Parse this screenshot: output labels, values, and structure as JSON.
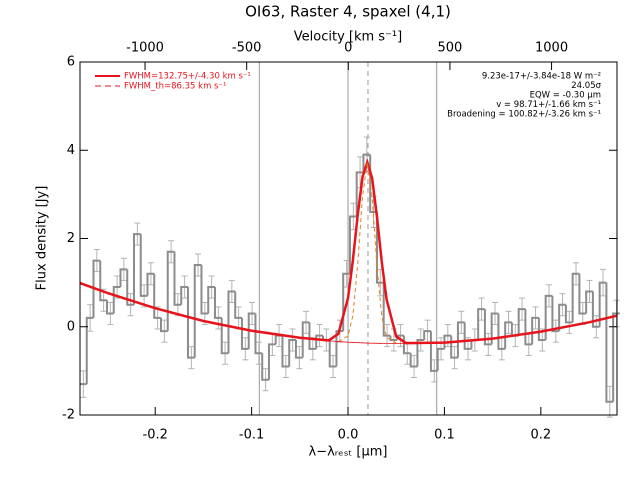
{
  "chart_data": {
    "type": "line",
    "title": "OI63, Raster 4, spaxel (4,1)",
    "xlabel": "λ−λᵣₑₛₜ [μm]",
    "ylabel": "Flux density [Jy]",
    "x2label": "Velocity [km s⁻¹]",
    "xlim": [
      -0.278,
      0.279
    ],
    "ylim": [
      -2,
      6
    ],
    "x2lim": [
      -1320,
      1322
    ],
    "xticks": [
      -0.2,
      -0.1,
      {
        "value": 0,
        "label": "0.0"
      },
      0.1,
      0.2
    ],
    "yticks": [
      -2,
      0,
      2,
      4,
      6
    ],
    "x2ticks": [
      -1000,
      -500,
      0,
      500,
      1000
    ],
    "reference_lines": [
      -0.092,
      0,
      0.092
    ],
    "line_center": 0.0207,
    "annotations": [
      "9.23e-17+/-3.84e-18 W m⁻²",
      "24.05σ",
      "EQW = -0.30 μm",
      "v = 98.71+/-1.66 km s⁻¹",
      "Broadening = 100.82+/-3.26 km s⁻¹"
    ],
    "series": [
      {
        "style": "step",
        "color": "#8c8c8c",
        "error_color": "#b4b4b4",
        "x": [
          -0.2745,
          -0.2675,
          -0.2605,
          -0.2535,
          -0.2465,
          -0.2395,
          -0.2325,
          -0.2255,
          -0.2185,
          -0.2115,
          -0.2045,
          -0.1975,
          -0.1905,
          -0.1835,
          -0.1765,
          -0.1695,
          -0.1625,
          -0.1555,
          -0.1485,
          -0.1415,
          -0.1345,
          -0.1275,
          -0.1205,
          -0.1135,
          -0.1065,
          -0.0995,
          -0.0925,
          -0.0855,
          -0.0785,
          -0.0715,
          -0.0645,
          -0.0575,
          -0.0505,
          -0.0435,
          -0.0365,
          -0.0295,
          -0.0225,
          -0.0155,
          -0.0085,
          -0.0015,
          0.0055,
          0.0125,
          0.0195,
          0.0265,
          0.0335,
          0.0405,
          0.0475,
          0.0545,
          0.0615,
          0.0685,
          0.0755,
          0.0825,
          0.0895,
          0.0965,
          0.1035,
          0.1105,
          0.1175,
          0.1245,
          0.1315,
          0.1385,
          0.1455,
          0.1525,
          0.1595,
          0.1665,
          0.1735,
          0.1805,
          0.1875,
          0.1945,
          0.2015,
          0.2085,
          0.2155,
          0.2225,
          0.2295,
          0.2365,
          0.2435,
          0.2505,
          0.2575,
          0.2645,
          0.2715,
          0.2785
        ],
        "values": [
          -1.3,
          0.2,
          1.5,
          0.6,
          0.3,
          0.9,
          1.3,
          0.5,
          2.1,
          0.7,
          1.2,
          0.2,
          -0.1,
          1.7,
          0.5,
          0.9,
          -0.7,
          1.4,
          0.3,
          0.9,
          0.2,
          -0.6,
          0.8,
          0.2,
          -0.5,
          0.3,
          -0.6,
          -1.2,
          -0.4,
          -0.2,
          -0.9,
          -0.3,
          -0.7,
          0.1,
          -0.5,
          -0.2,
          -0.3,
          -0.9,
          -0.1,
          1.2,
          2.5,
          3.5,
          3.9,
          2.6,
          1.0,
          -0.2,
          -0.3,
          -0.2,
          -0.6,
          -0.9,
          -0.3,
          -0.1,
          -1.0,
          -0.5,
          -0.2,
          -0.7,
          0.1,
          -0.5,
          -0.3,
          0.4,
          -0.4,
          0.3,
          -0.5,
          0.1,
          -0.2,
          0.4,
          -0.4,
          0.2,
          -0.3,
          0.7,
          -0.1,
          0.5,
          0.1,
          1.2,
          0.3,
          0.8,
          0.0,
          1.0,
          -1.7,
          0.3
        ],
        "errors": [
          0.3,
          0.3,
          0.25,
          0.25,
          0.25,
          0.25,
          0.25,
          0.25,
          0.25,
          0.25,
          0.25,
          0.25,
          0.25,
          0.25,
          0.25,
          0.25,
          0.25,
          0.25,
          0.25,
          0.25,
          0.25,
          0.25,
          0.25,
          0.25,
          0.25,
          0.25,
          0.25,
          0.25,
          0.25,
          0.25,
          0.25,
          0.25,
          0.25,
          0.25,
          0.25,
          0.25,
          0.25,
          0.25,
          0.25,
          0.3,
          0.3,
          0.35,
          0.4,
          0.35,
          0.3,
          0.25,
          0.25,
          0.25,
          0.25,
          0.25,
          0.25,
          0.25,
          0.25,
          0.25,
          0.25,
          0.25,
          0.25,
          0.25,
          0.25,
          0.25,
          0.25,
          0.25,
          0.25,
          0.25,
          0.25,
          0.25,
          0.25,
          0.25,
          0.25,
          0.25,
          0.25,
          0.25,
          0.25,
          0.25,
          0.25,
          0.25,
          0.25,
          0.3,
          0.35,
          0.3
        ]
      },
      {
        "name": "FWHM=132.75+/-4.30 km s⁻¹",
        "style": "solid",
        "width": 2.5,
        "color": "#e8141c",
        "x": [
          -0.278,
          -0.25,
          -0.2,
          -0.15,
          -0.1,
          -0.05,
          -0.02,
          -0.01,
          0,
          0.005,
          0.01,
          0.015,
          0.02,
          0.025,
          0.03,
          0.035,
          0.04,
          0.05,
          0.06,
          0.1,
          0.15,
          0.2,
          0.25,
          0.279
        ],
        "values": [
          0.99,
          0.77,
          0.42,
          0.13,
          -0.09,
          -0.25,
          -0.31,
          -0.16,
          0.65,
          1.5,
          2.52,
          3.39,
          3.73,
          3.37,
          2.5,
          1.47,
          0.62,
          -0.22,
          -0.37,
          -0.36,
          -0.27,
          -0.11,
          0.1,
          0.25
        ]
      },
      {
        "name": "FWHM_th=86.35 km s⁻¹",
        "style": "dashed",
        "width": 1,
        "color": "#e08020",
        "x": [
          -0.01,
          0,
          0.005,
          0.01,
          0.015,
          0.02,
          0.025,
          0.03,
          0.035,
          0.04,
          0.05
        ],
        "values": [
          -0.34,
          -0.21,
          0.25,
          1.4,
          2.95,
          3.73,
          2.94,
          1.38,
          0.23,
          -0.24,
          -0.37
        ]
      },
      {
        "style": "solid",
        "width": 0.8,
        "color": "#e8141c",
        "x": [
          -0.06,
          -0.02,
          0,
          0.02,
          0.04,
          0.07
        ],
        "values": [
          -0.23,
          -0.32,
          -0.35,
          -0.37,
          -0.38,
          -0.385
        ]
      }
    ]
  }
}
